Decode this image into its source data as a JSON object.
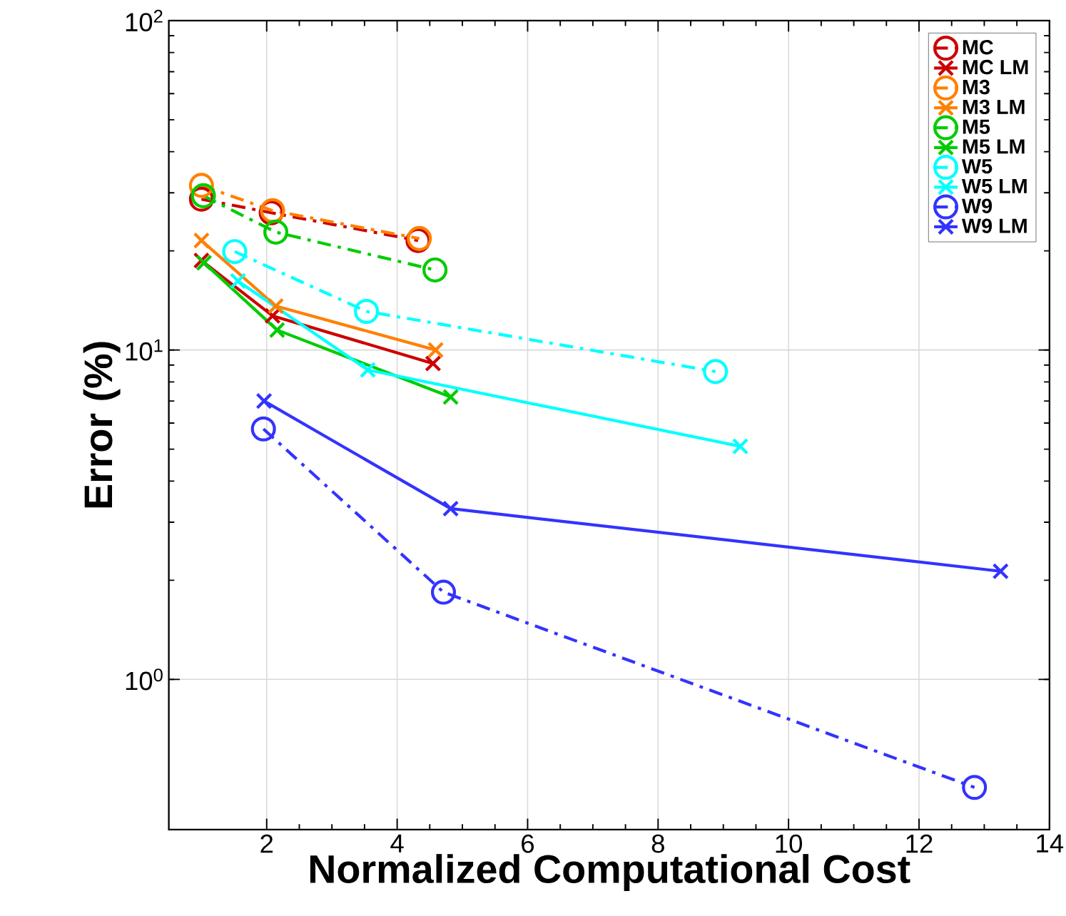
{
  "chart_data": {
    "type": "line",
    "xlabel": "Normalized Computational Cost",
    "ylabel": "Error (%)",
    "log": "y",
    "grid": true,
    "legend": "top right",
    "xlim": [
      0.5,
      14
    ],
    "xticks": [
      2,
      4,
      6,
      8,
      10,
      12,
      14
    ],
    "ylim": [
      0.35,
      100
    ],
    "yticks": [
      {
        "value": 1,
        "label": "10$^{0}$"
      },
      {
        "value": 10,
        "label": "10$^{1}$"
      },
      {
        "value": 100,
        "label": "10$^{2}$"
      }
    ],
    "series": [
      {
        "name": "MC",
        "color": "#cc0000",
        "marker": "circle",
        "line_style": "dashdot",
        "x": [
          1.0,
          2.07,
          4.32
        ],
        "values": [
          28.7,
          26.1,
          21.5
        ]
      },
      {
        "name": "MC LM",
        "color": "#cc0000",
        "marker": "cross",
        "line_style": "solid",
        "x": [
          1.0,
          2.09,
          4.55
        ],
        "values": [
          18.7,
          12.7,
          9.1
        ]
      },
      {
        "name": "M3",
        "color": "#ff8000",
        "marker": "circle",
        "line_style": "dashdot",
        "x": [
          1.0,
          2.09,
          4.34
        ],
        "values": [
          31.6,
          26.5,
          21.8
        ]
      },
      {
        "name": "M3 LM",
        "color": "#ff8000",
        "marker": "cross",
        "line_style": "solid",
        "x": [
          1.0,
          2.14,
          4.59
        ],
        "values": [
          21.5,
          13.6,
          10.0
        ]
      },
      {
        "name": "M5",
        "color": "#00cc00",
        "marker": "circle",
        "line_style": "dashdot",
        "x": [
          1.03,
          2.14,
          4.58
        ],
        "values": [
          29.4,
          22.8,
          17.5
        ]
      },
      {
        "name": "M5 LM",
        "color": "#00cc00",
        "marker": "cross",
        "line_style": "solid",
        "x": [
          1.04,
          2.16,
          4.82
        ],
        "values": [
          18.4,
          11.5,
          7.2
        ]
      },
      {
        "name": "W5",
        "color": "#00ffff",
        "marker": "circle",
        "line_style": "dashdot",
        "x": [
          1.51,
          3.53,
          8.88
        ],
        "values": [
          19.9,
          13.1,
          8.6
        ]
      },
      {
        "name": "W5 LM",
        "color": "#00ffff",
        "marker": "cross",
        "line_style": "solid",
        "x": [
          1.56,
          3.55,
          9.26
        ],
        "values": [
          16.2,
          8.7,
          5.1
        ]
      },
      {
        "name": "W9",
        "color": "#3333ff",
        "marker": "circle",
        "line_style": "dashdot",
        "x": [
          1.95,
          4.71,
          12.85
        ],
        "values": [
          5.76,
          1.84,
          0.47
        ]
      },
      {
        "name": "W9 LM",
        "color": "#3333ff",
        "marker": "cross",
        "line_style": "solid",
        "x": [
          1.96,
          4.82,
          13.25
        ],
        "values": [
          7.0,
          3.3,
          2.13
        ]
      }
    ]
  }
}
